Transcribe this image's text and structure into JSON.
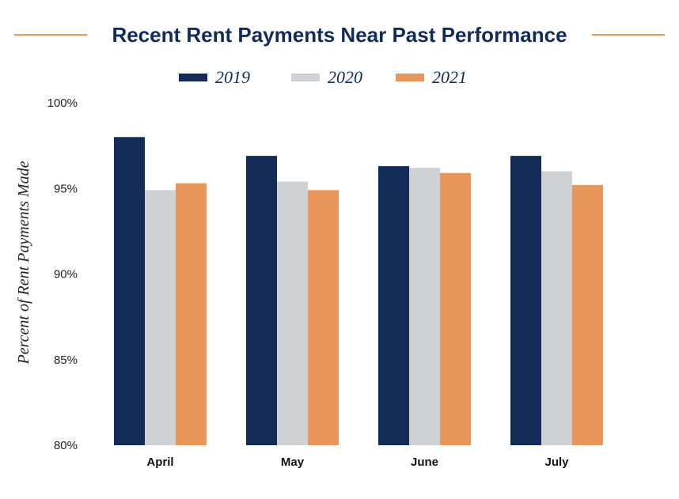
{
  "chart_data": {
    "type": "bar",
    "title": "Recent Rent Payments Near Past Performance",
    "xlabel": "",
    "ylabel": "Percent of Rent Payments Made",
    "categories": [
      "April",
      "May",
      "June",
      "July"
    ],
    "series": [
      {
        "name": "2019",
        "color": "#132b57",
        "values": [
          98.0,
          96.9,
          96.3,
          96.9
        ]
      },
      {
        "name": "2020",
        "color": "#cfd2d5",
        "values": [
          94.9,
          95.4,
          96.2,
          96.0
        ]
      },
      {
        "name": "2021",
        "color": "#e8965a",
        "values": [
          95.3,
          94.9,
          95.9,
          95.2
        ]
      }
    ],
    "ylim": [
      80,
      100
    ],
    "yticks": [
      80,
      85,
      90,
      95,
      100
    ],
    "ytick_labels": [
      "80%",
      "85%",
      "90%",
      "95%",
      "100%"
    ],
    "grid": false,
    "legend_position": "top-center",
    "accent_line_color": "#e8965a"
  }
}
